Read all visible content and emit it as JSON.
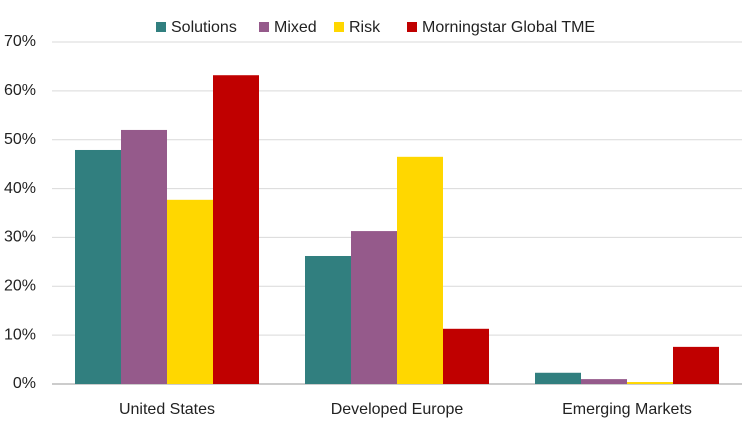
{
  "chart_data": {
    "type": "bar",
    "categories": [
      "United States",
      "Developed Europe",
      "Emerging Markets"
    ],
    "series": [
      {
        "name": "Solutions",
        "color": "#317f7f",
        "values": [
          47.9,
          26.2,
          2.3
        ]
      },
      {
        "name": "Mixed",
        "color": "#955a8b",
        "values": [
          52.0,
          31.3,
          1.0
        ]
      },
      {
        "name": "Risk",
        "color": "#ffd700",
        "values": [
          37.7,
          46.5,
          0.4
        ]
      },
      {
        "name": "Morningstar Global TME",
        "color": "#c00000",
        "values": [
          63.2,
          11.3,
          7.6
        ]
      }
    ],
    "ylim": [
      0,
      70
    ],
    "yticks": [
      {
        "value": 0,
        "label": "0%"
      },
      {
        "value": 10,
        "label": "10%"
      },
      {
        "value": 20,
        "label": "20%"
      },
      {
        "value": 30,
        "label": "30%"
      },
      {
        "value": 40,
        "label": "40%"
      },
      {
        "value": 50,
        "label": "50%"
      },
      {
        "value": 60,
        "label": "60%"
      },
      {
        "value": 70,
        "label": "70%"
      }
    ],
    "grid": true,
    "legend": "top"
  }
}
